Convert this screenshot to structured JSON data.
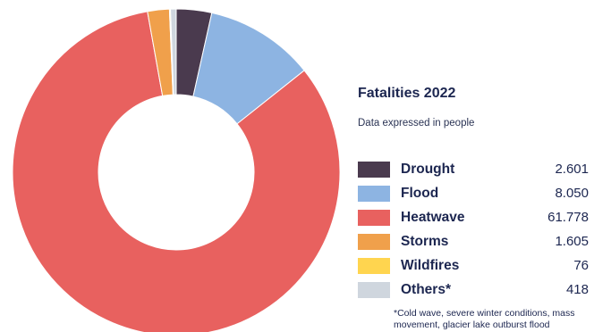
{
  "chart_data": {
    "type": "pie",
    "title": "Fatalities 2022",
    "subtitle": "Data expressed in people",
    "categories": [
      "Drought",
      "Flood",
      "Heatwave",
      "Storms",
      "Wildfires",
      "Others*"
    ],
    "values": [
      2601,
      8050,
      61778,
      1605,
      76,
      418
    ],
    "display_values": [
      "2.601",
      "8.050",
      "61.778",
      "1.605",
      "76",
      "418"
    ],
    "colors": [
      "#4a3a4e",
      "#8db4e2",
      "#e8615f",
      "#f0a04b",
      "#ffd54f",
      "#cfd6de"
    ],
    "footnote": "*Cold wave, severe winter conditions, mass movement, glacier lake outburst flood"
  }
}
